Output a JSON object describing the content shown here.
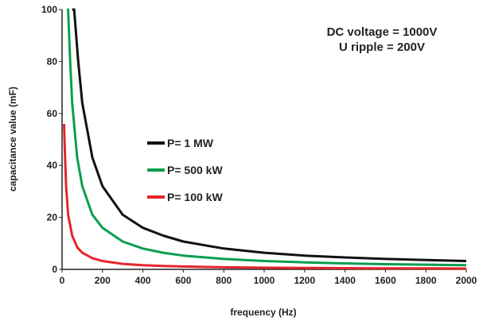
{
  "chart_data": {
    "type": "line",
    "title": "",
    "xlabel": "frequency (Hz)",
    "ylabel": "capacitance value (mF)",
    "xlim": [
      0,
      2000
    ],
    "ylim": [
      0,
      100
    ],
    "x_ticks": [
      0,
      200,
      400,
      600,
      800,
      1000,
      1200,
      1400,
      1600,
      1800,
      2000
    ],
    "y_ticks": [
      0,
      20,
      40,
      60,
      80,
      100
    ],
    "grid": false,
    "legend_position": "center-left",
    "annotations": [
      "DC voltage = 1000V",
      "U ripple = 200V"
    ],
    "series": [
      {
        "name": "P= 1 MW",
        "color": "#111111",
        "x": [
          50,
          60,
          80,
          100,
          150,
          200,
          300,
          400,
          500,
          600,
          800,
          1000,
          1200,
          1400,
          1600,
          1800,
          2000
        ],
        "y": [
          100,
          100,
          80,
          64,
          43,
          32,
          21,
          16,
          13,
          10.7,
          8,
          6.4,
          5.3,
          4.6,
          4,
          3.6,
          3.2
        ]
      },
      {
        "name": "P= 500 kW",
        "color": "#0a9e4f",
        "x": [
          25,
          30,
          40,
          50,
          75,
          100,
          150,
          200,
          300,
          400,
          500,
          600,
          800,
          1000,
          1200,
          1400,
          1600,
          1800,
          2000
        ],
        "y": [
          100,
          100,
          80,
          64,
          43,
          32,
          21,
          16,
          10.7,
          8,
          6.4,
          5.3,
          4,
          3.2,
          2.7,
          2.3,
          2,
          1.8,
          1.6
        ]
      },
      {
        "name": "P= 100 kW",
        "color": "#e3262d",
        "x": [
          10,
          15,
          20,
          30,
          50,
          75,
          100,
          150,
          200,
          300,
          400,
          500,
          600,
          800,
          1000,
          1200,
          1400,
          1600,
          1800,
          2000
        ],
        "y": [
          56,
          43,
          32,
          21,
          13,
          8.5,
          6.4,
          4.3,
          3.2,
          2.1,
          1.6,
          1.3,
          1.1,
          0.8,
          0.64,
          0.53,
          0.46,
          0.4,
          0.36,
          0.32
        ]
      }
    ]
  }
}
